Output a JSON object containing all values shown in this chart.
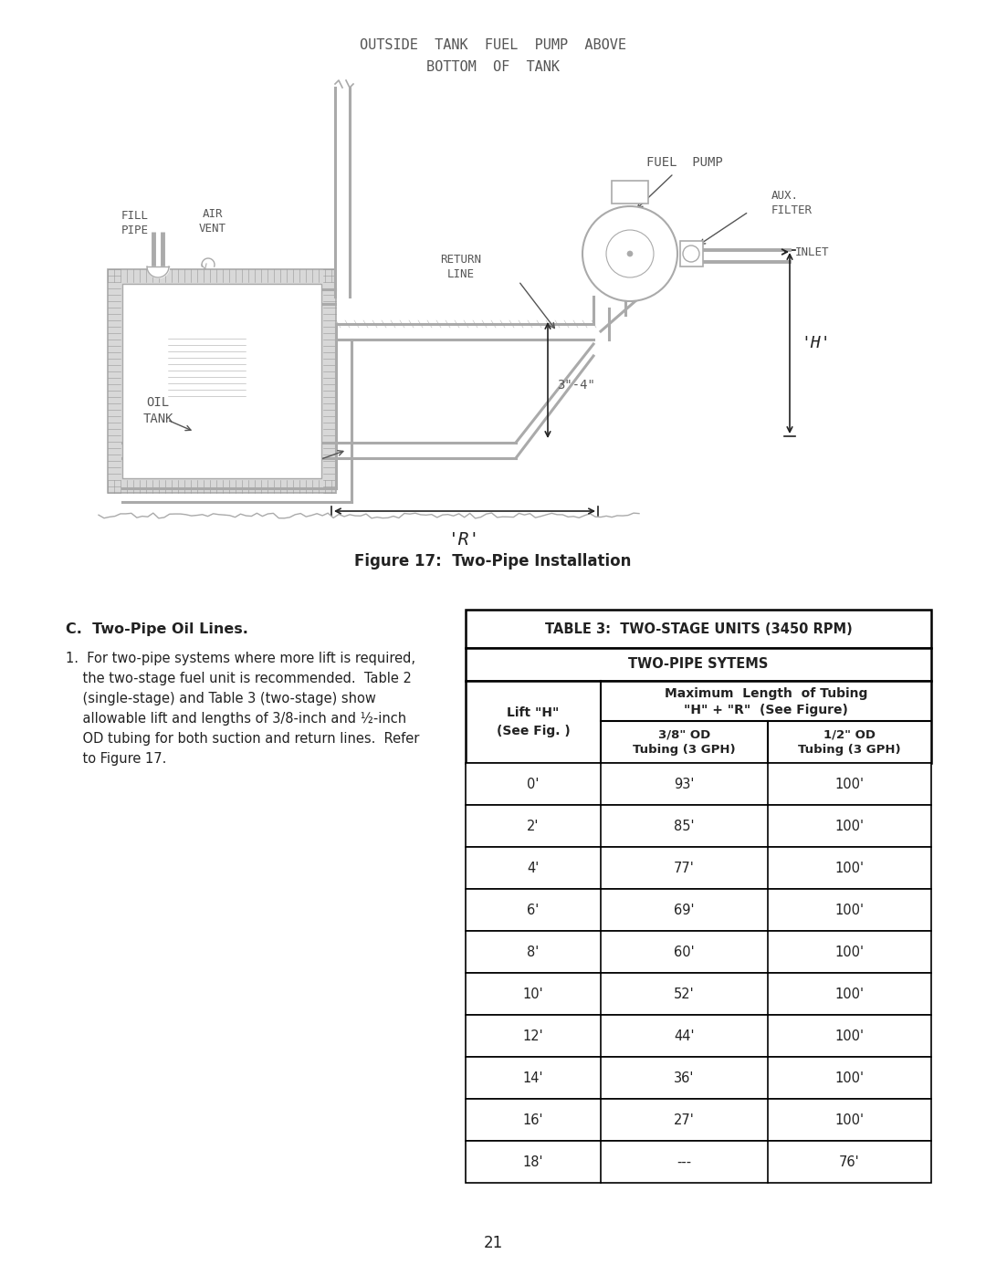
{
  "page_number": "21",
  "figure_caption": "Figure 17:  Two-Pipe Installation",
  "diagram_title_line1": "OUTSIDE  TANK  FUEL  PUMP  ABOVE",
  "diagram_title_line2": "BOTTOM  OF  TANK",
  "section_header": "C.  Two-Pipe Oil Lines.",
  "body_lines": [
    "1.  For two-pipe systems where more lift is required,",
    "    the two-stage fuel unit is recommended.  Table 2",
    "    (single-stage) and Table 3 (two-stage) show",
    "    allowable lift and lengths of 3/8-inch and ½-inch",
    "    OD tubing for both suction and return lines.  Refer",
    "    to Figure 17."
  ],
  "table_title_line1": "TABLE 3:  TWO-STAGE UNITS (3450 RPM)",
  "table_title_line2": "TWO-PIPE SYTEMS",
  "table_data": [
    [
      "0'",
      "93'",
      "100'"
    ],
    [
      "2'",
      "85'",
      "100'"
    ],
    [
      "4'",
      "77'",
      "100'"
    ],
    [
      "6'",
      "69'",
      "100'"
    ],
    [
      "8'",
      "60'",
      "100'"
    ],
    [
      "10'",
      "52'",
      "100'"
    ],
    [
      "12'",
      "44'",
      "100'"
    ],
    [
      "14'",
      "36'",
      "100'"
    ],
    [
      "16'",
      "27'",
      "100'"
    ],
    [
      "18'",
      "---",
      "76'"
    ]
  ],
  "bg_color": "#ffffff",
  "line_color": "#aaaaaa",
  "text_color": "#555555",
  "dark_text": "#222222",
  "table_border_color": "#000000"
}
